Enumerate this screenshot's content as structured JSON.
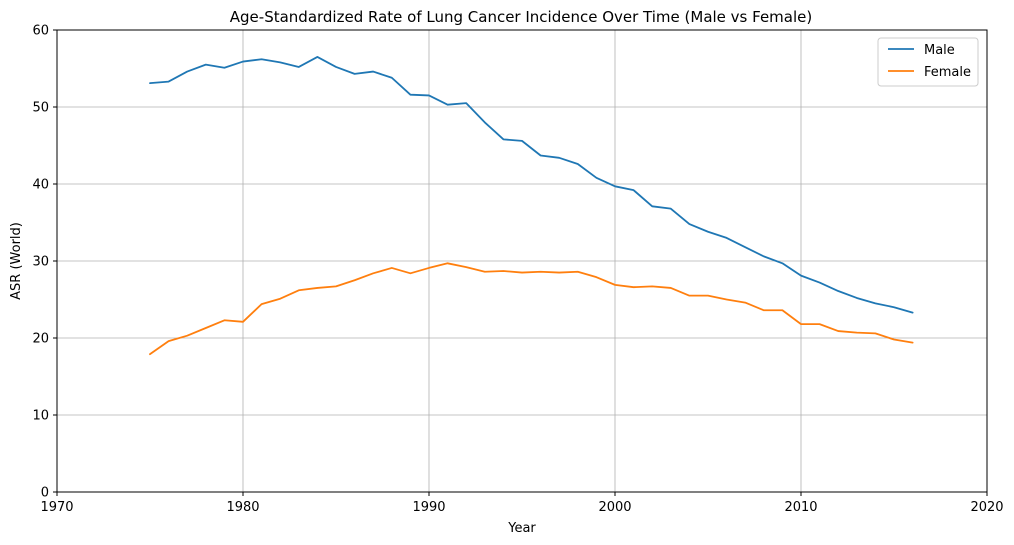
{
  "chart_data": {
    "type": "line",
    "title": "Age-Standardized Rate of Lung Cancer Incidence Over Time (Male vs Female)",
    "xlabel": "Year",
    "ylabel": "ASR (World)",
    "xlim": [
      1970,
      2020
    ],
    "ylim": [
      0,
      60
    ],
    "xticks": [
      1970,
      1980,
      1990,
      2000,
      2010,
      2020
    ],
    "yticks": [
      0,
      10,
      20,
      30,
      40,
      50,
      60
    ],
    "grid": true,
    "legend_position": "top-right",
    "x": [
      1975,
      1976,
      1977,
      1978,
      1979,
      1980,
      1981,
      1982,
      1983,
      1984,
      1985,
      1986,
      1987,
      1988,
      1989,
      1990,
      1991,
      1992,
      1993,
      1994,
      1995,
      1996,
      1997,
      1998,
      1999,
      2000,
      2001,
      2002,
      2003,
      2004,
      2005,
      2006,
      2007,
      2008,
      2009,
      2010,
      2011,
      2012,
      2013,
      2014,
      2015,
      2016
    ],
    "series": [
      {
        "name": "Male",
        "color": "#1f77b4",
        "values": [
          53.1,
          53.3,
          54.6,
          55.5,
          55.1,
          55.9,
          56.2,
          55.8,
          55.2,
          56.5,
          55.2,
          54.3,
          54.6,
          53.8,
          51.6,
          51.5,
          50.3,
          50.5,
          48.0,
          45.8,
          45.6,
          43.7,
          43.4,
          42.6,
          40.8,
          39.7,
          39.2,
          37.1,
          36.8,
          34.8,
          33.8,
          33.0,
          31.8,
          30.6,
          29.7,
          28.1,
          27.2,
          26.1,
          25.2,
          24.5,
          24.0,
          23.3
        ]
      },
      {
        "name": "Female",
        "color": "#ff7f0e",
        "values": [
          17.9,
          19.6,
          20.3,
          21.3,
          22.3,
          22.1,
          24.4,
          25.1,
          26.2,
          26.5,
          26.7,
          27.5,
          28.4,
          29.1,
          28.4,
          29.1,
          29.7,
          29.2,
          28.6,
          28.7,
          28.5,
          28.6,
          28.5,
          28.6,
          27.9,
          26.9,
          26.6,
          26.7,
          26.5,
          25.5,
          25.5,
          25.0,
          24.6,
          23.6,
          23.6,
          21.8,
          21.8,
          20.9,
          20.7,
          20.6,
          19.8,
          19.4
        ]
      }
    ]
  }
}
